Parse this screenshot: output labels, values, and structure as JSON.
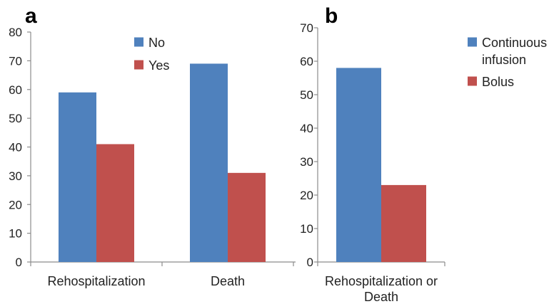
{
  "chart_data": [
    {
      "type": "bar",
      "panel_label": "a",
      "categories": [
        "Rehospitalization",
        "Death"
      ],
      "series": [
        {
          "name": "No",
          "values": [
            59,
            69
          ],
          "color": "#4f81bd"
        },
        {
          "name": "Yes",
          "values": [
            41,
            31
          ],
          "color": "#c0504d"
        }
      ],
      "ylim": [
        0,
        80
      ],
      "yticks": [
        0,
        10,
        20,
        30,
        40,
        50,
        60,
        70,
        80
      ],
      "title": "",
      "xlabel": "",
      "ylabel": "",
      "grid": false,
      "legend_position": "top-right"
    },
    {
      "type": "bar",
      "panel_label": "b",
      "categories": [
        "Rehospitalization or Death"
      ],
      "category_lines": [
        [
          "Rehospitalization or",
          "Death"
        ]
      ],
      "series": [
        {
          "name": "Continuous infusion",
          "name_lines": [
            "Continuous",
            "infusion"
          ],
          "values": [
            58
          ],
          "color": "#4f81bd"
        },
        {
          "name": "Bolus",
          "name_lines": [
            "Bolus"
          ],
          "values": [
            23
          ],
          "color": "#c0504d"
        }
      ],
      "ylim": [
        0,
        70
      ],
      "yticks": [
        0,
        10,
        20,
        30,
        40,
        50,
        60,
        70
      ],
      "title": "",
      "xlabel": "",
      "ylabel": "",
      "grid": false,
      "legend_position": "right"
    }
  ]
}
